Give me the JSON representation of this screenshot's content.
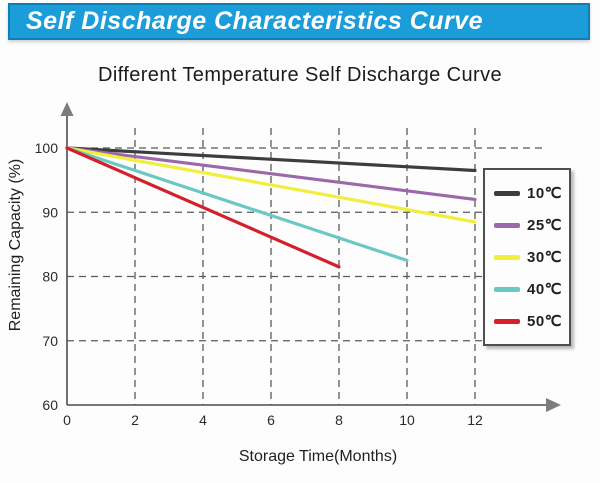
{
  "banner": {
    "title": "Self Discharge Characteristics Curve",
    "bg_color": "#1a9dd9",
    "border_color": "#0e7fb5",
    "text_color": "#ffffff"
  },
  "chart_data": {
    "type": "line",
    "title": "Different Temperature Self Discharge Curve",
    "xlabel": "Storage Time(Months)",
    "ylabel": "Remaining Capacity (%)",
    "xlim": [
      0,
      13.5
    ],
    "ylim": [
      60,
      100
    ],
    "x_ticks": [
      0,
      2,
      4,
      6,
      8,
      10,
      12
    ],
    "y_ticks": [
      60,
      70,
      80,
      90,
      100
    ],
    "grid": "dashed",
    "legend_position": "right-box",
    "axis_color": "#4d4d4d",
    "grid_color": "#5a5a5a",
    "tick_label_color": "#2b2b2b",
    "series": [
      {
        "name": "10℃",
        "color": "#3d3d3d",
        "x": [
          0,
          12
        ],
        "y": [
          100,
          96.5
        ]
      },
      {
        "name": "25℃",
        "color": "#9b68a9",
        "x": [
          0,
          12
        ],
        "y": [
          100,
          92
        ]
      },
      {
        "name": "30℃",
        "color": "#f2ee3c",
        "x": [
          0,
          12
        ],
        "y": [
          100,
          88.5
        ]
      },
      {
        "name": "40℃",
        "color": "#6cc8c2",
        "x": [
          0,
          10
        ],
        "y": [
          100,
          82.5
        ]
      },
      {
        "name": "50℃",
        "color": "#d5202c",
        "x": [
          0,
          8
        ],
        "y": [
          100,
          81.5
        ]
      }
    ]
  }
}
